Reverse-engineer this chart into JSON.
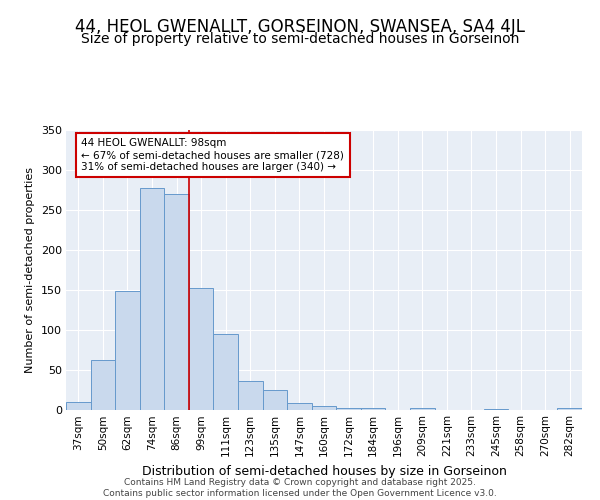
{
  "title": "44, HEOL GWENALLT, GORSEINON, SWANSEA, SA4 4JL",
  "subtitle": "Size of property relative to semi-detached houses in Gorseinon",
  "xlabel": "Distribution of semi-detached houses by size in Gorseinon",
  "ylabel": "Number of semi-detached properties",
  "categories": [
    "37sqm",
    "50sqm",
    "62sqm",
    "74sqm",
    "86sqm",
    "99sqm",
    "111sqm",
    "123sqm",
    "135sqm",
    "147sqm",
    "160sqm",
    "172sqm",
    "184sqm",
    "196sqm",
    "209sqm",
    "221sqm",
    "233sqm",
    "245sqm",
    "258sqm",
    "270sqm",
    "282sqm"
  ],
  "values": [
    10,
    63,
    149,
    277,
    270,
    153,
    95,
    36,
    25,
    9,
    5,
    3,
    2,
    0,
    2,
    0,
    0,
    1,
    0,
    0,
    2
  ],
  "bar_color": "#c9d9ed",
  "bar_edge_color": "#6699cc",
  "red_line_index": 5,
  "red_line_label": "44 HEOL GWENALLT: 98sqm",
  "smaller_pct": "67%",
  "smaller_count": 728,
  "larger_pct": "31%",
  "larger_count": 340,
  "ylim": [
    0,
    350
  ],
  "yticks": [
    0,
    50,
    100,
    150,
    200,
    250,
    300,
    350
  ],
  "annotation_box_color": "#ffffff",
  "annotation_box_edge": "#cc0000",
  "footer1": "Contains HM Land Registry data © Crown copyright and database right 2025.",
  "footer2": "Contains public sector information licensed under the Open Government Licence v3.0.",
  "bg_color": "#e8eef6",
  "title_fontsize": 12,
  "subtitle_fontsize": 10,
  "xlabel_fontsize": 9,
  "ylabel_fontsize": 8
}
